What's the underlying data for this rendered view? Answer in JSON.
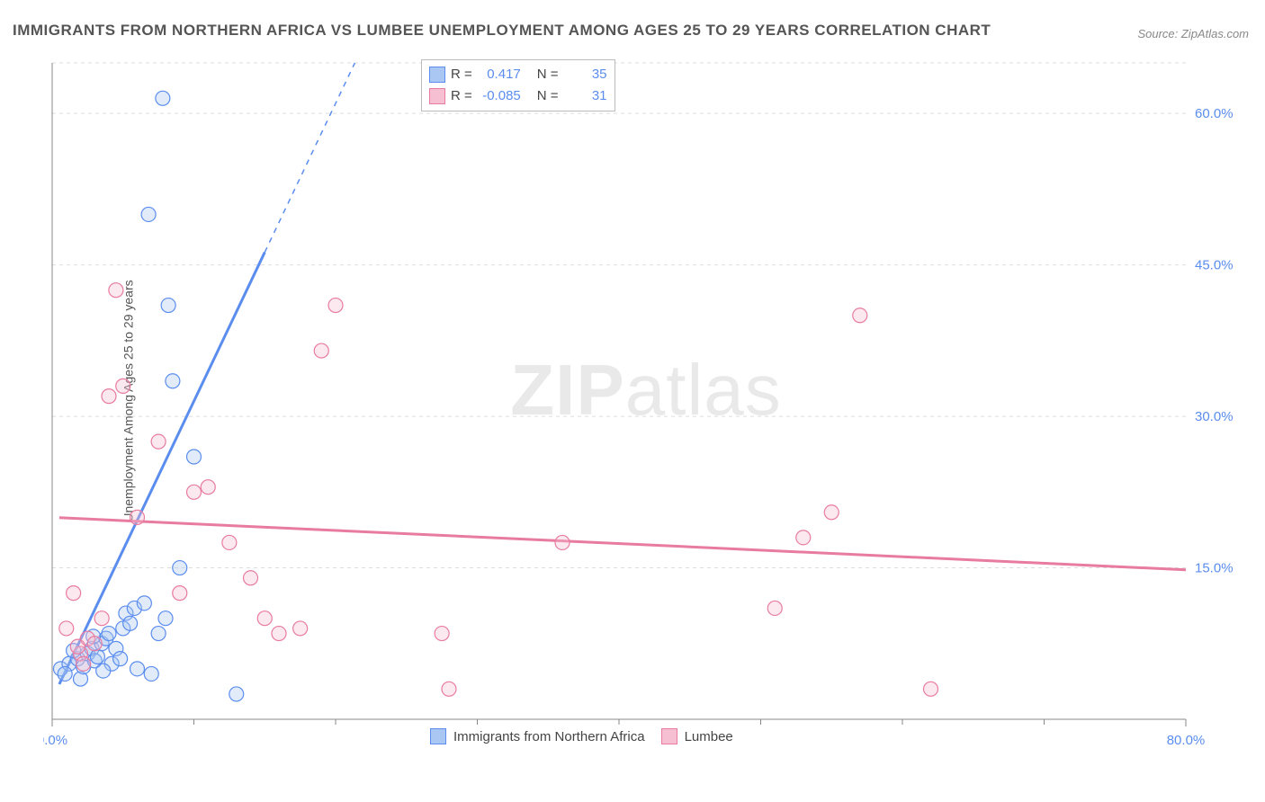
{
  "title": "IMMIGRANTS FROM NORTHERN AFRICA VS LUMBEE UNEMPLOYMENT AMONG AGES 25 TO 29 YEARS CORRELATION CHART",
  "source": "Source: ZipAtlas.com",
  "y_axis_label": "Unemployment Among Ages 25 to 29 years",
  "watermark_a": "ZIP",
  "watermark_b": "atlas",
  "chart": {
    "type": "scatter",
    "background_color": "#ffffff",
    "grid_color": "#dddddd",
    "axis_color": "#888888",
    "tick_label_color": "#5b8def",
    "xlim": [
      0,
      80
    ],
    "ylim": [
      0,
      65
    ],
    "x_ticks_major": [
      0,
      80
    ],
    "x_ticks_minor": [
      10,
      20,
      30,
      40,
      50,
      60,
      70
    ],
    "y_ticks_major": [
      15,
      30,
      45,
      60
    ],
    "x_tick_labels": {
      "0": "0.0%",
      "80": "80.0%"
    },
    "y_tick_labels": {
      "15": "15.0%",
      "30": "30.0%",
      "45": "45.0%",
      "60": "60.0%"
    },
    "marker_radius": 8,
    "marker_fill_opacity": 0.35,
    "marker_stroke_width": 1.2,
    "series": [
      {
        "name": "Immigrants from Northern Africa",
        "color_stroke": "#5b8def",
        "color_fill": "#a9c7f2",
        "points": [
          [
            0.6,
            5.0
          ],
          [
            1.2,
            5.5
          ],
          [
            1.8,
            6.0
          ],
          [
            2.0,
            4.0
          ],
          [
            2.2,
            5.2
          ],
          [
            2.5,
            6.5
          ],
          [
            2.8,
            7.0
          ],
          [
            3.0,
            5.8
          ],
          [
            3.2,
            6.2
          ],
          [
            3.5,
            7.5
          ],
          [
            3.8,
            8.0
          ],
          [
            4.0,
            8.5
          ],
          [
            4.2,
            5.5
          ],
          [
            4.5,
            7.0
          ],
          [
            5.0,
            9.0
          ],
          [
            5.2,
            10.5
          ],
          [
            5.5,
            9.5
          ],
          [
            5.8,
            11.0
          ],
          [
            6.0,
            5.0
          ],
          [
            6.5,
            11.5
          ],
          [
            7.0,
            4.5
          ],
          [
            7.5,
            8.5
          ],
          [
            8.0,
            10.0
          ],
          [
            8.5,
            33.5
          ],
          [
            9.0,
            15.0
          ],
          [
            8.2,
            41.0
          ],
          [
            10.0,
            26.0
          ],
          [
            13.0,
            2.5
          ],
          [
            7.8,
            61.5
          ],
          [
            6.8,
            50.0
          ],
          [
            4.8,
            6.0
          ],
          [
            3.6,
            4.8
          ],
          [
            2.9,
            8.2
          ],
          [
            1.5,
            6.8
          ],
          [
            0.9,
            4.5
          ]
        ],
        "trend": {
          "slope": 2.95,
          "intercept": 2.0,
          "solid_xmax": 15,
          "dashed_xmax": 28
        }
      },
      {
        "name": "Lumbee",
        "color_stroke": "#e87ba0",
        "color_fill": "#f6c0d2",
        "points": [
          [
            1.0,
            9.0
          ],
          [
            1.5,
            12.5
          ],
          [
            2.0,
            6.5
          ],
          [
            2.5,
            8.0
          ],
          [
            3.0,
            7.5
          ],
          [
            3.5,
            10.0
          ],
          [
            4.0,
            32.0
          ],
          [
            4.5,
            42.5
          ],
          [
            5.0,
            33.0
          ],
          [
            6.0,
            20.0
          ],
          [
            7.5,
            27.5
          ],
          [
            9.0,
            12.5
          ],
          [
            10.0,
            22.5
          ],
          [
            11.0,
            23.0
          ],
          [
            12.5,
            17.5
          ],
          [
            14.0,
            14.0
          ],
          [
            15.0,
            10.0
          ],
          [
            16.0,
            8.5
          ],
          [
            17.5,
            9.0
          ],
          [
            19.0,
            36.5
          ],
          [
            20.0,
            41.0
          ],
          [
            27.5,
            8.5
          ],
          [
            28.0,
            3.0
          ],
          [
            36.0,
            17.5
          ],
          [
            51.0,
            11.0
          ],
          [
            53.0,
            18.0
          ],
          [
            55.0,
            20.5
          ],
          [
            57.0,
            40.0
          ],
          [
            62.0,
            3.0
          ],
          [
            2.2,
            5.5
          ],
          [
            1.8,
            7.2
          ]
        ],
        "trend": {
          "slope": -0.065,
          "intercept": 20.0,
          "solid_xmax": 80,
          "dashed_xmax": 80
        }
      }
    ]
  },
  "stats_box": {
    "rows": [
      {
        "swatch_fill": "#a9c7f2",
        "swatch_border": "#5b8def",
        "r_label": "R =",
        "r": "0.417",
        "n_label": "N =",
        "n": "35"
      },
      {
        "swatch_fill": "#f6c0d2",
        "swatch_border": "#e87ba0",
        "r_label": "R =",
        "r": "-0.085",
        "n_label": "N =",
        "n": "31"
      }
    ]
  },
  "legend_bottom": {
    "items": [
      {
        "swatch_fill": "#a9c7f2",
        "swatch_border": "#5b8def",
        "label": "Immigrants from Northern Africa"
      },
      {
        "swatch_fill": "#f6c0d2",
        "swatch_border": "#e87ba0",
        "label": "Lumbee"
      }
    ]
  }
}
